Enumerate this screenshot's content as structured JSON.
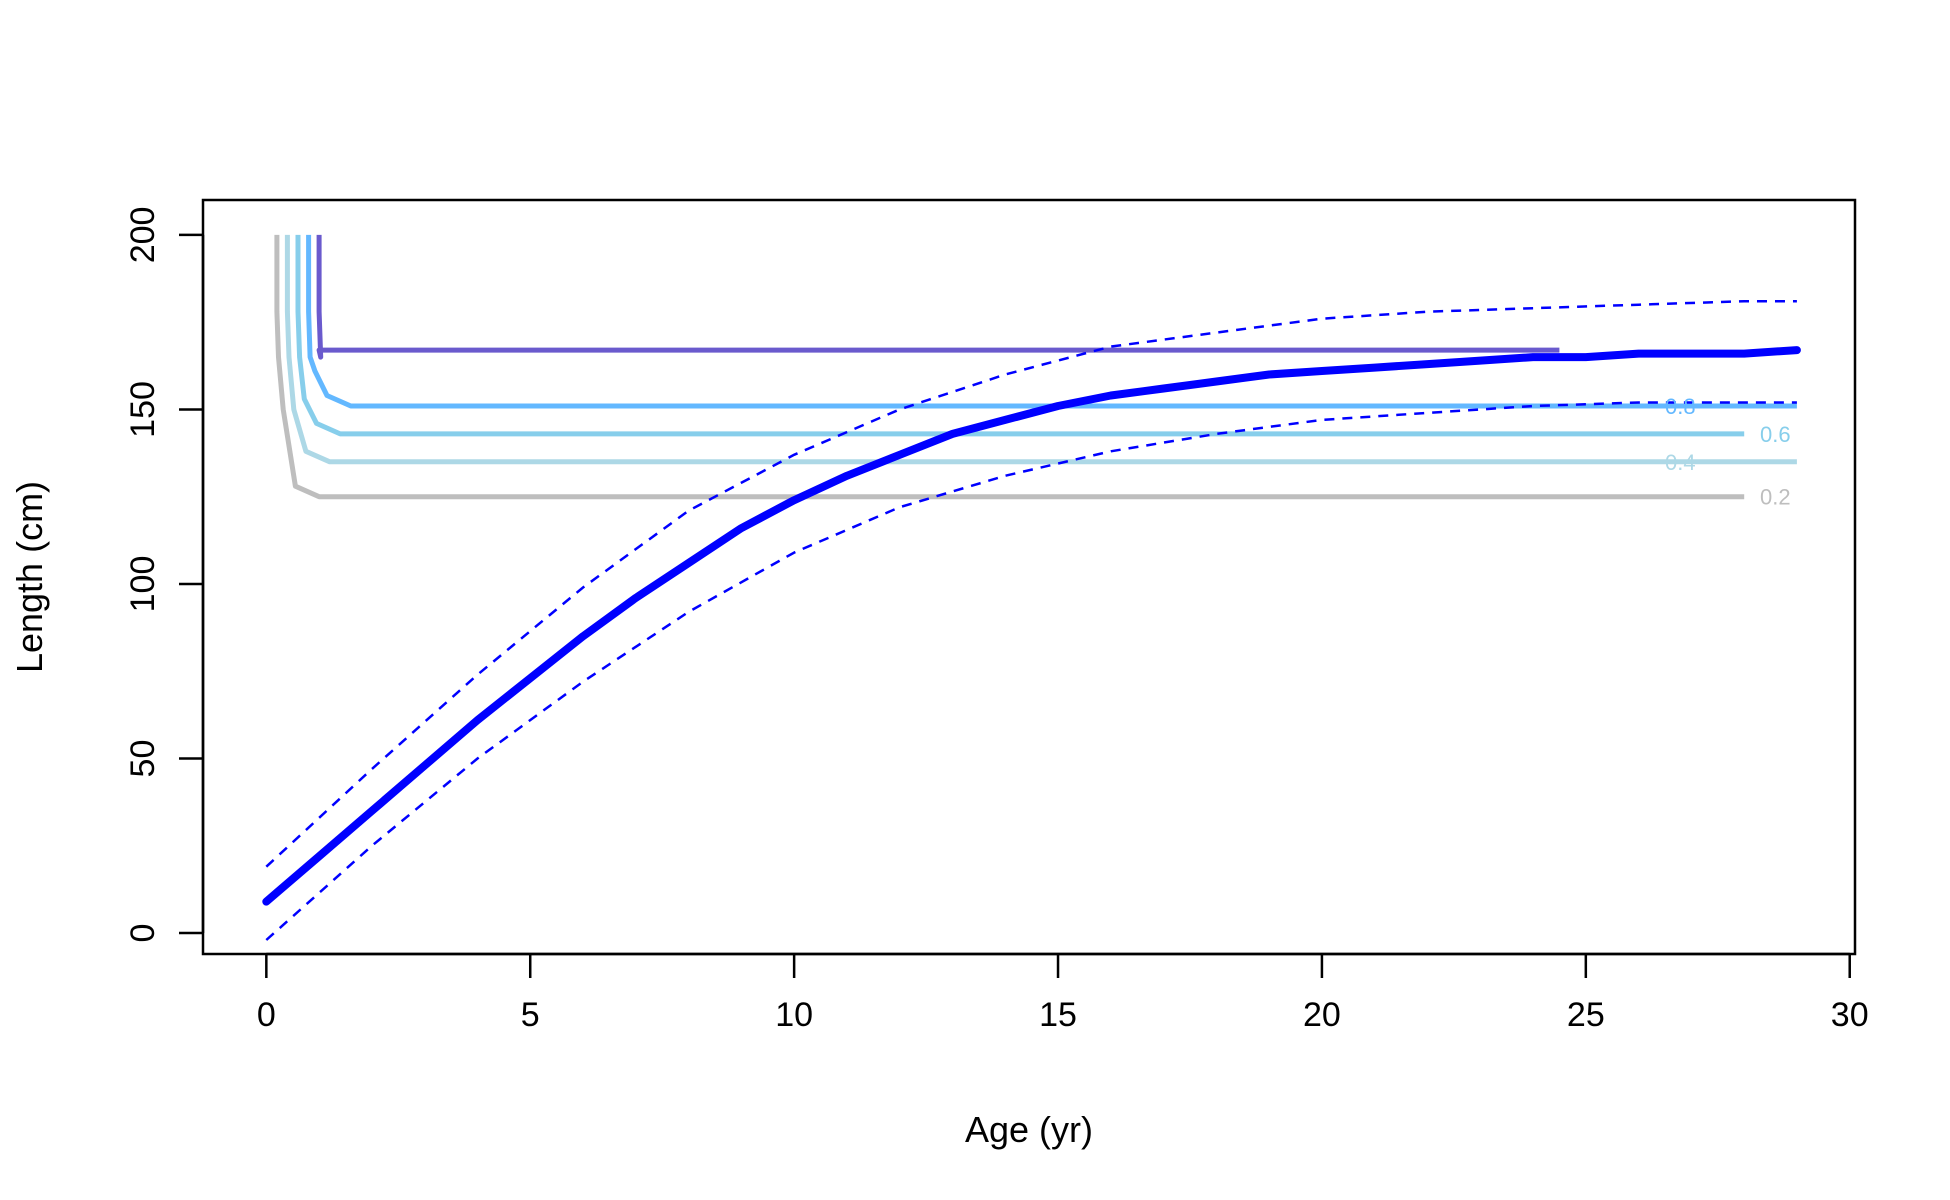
{
  "chart_data": {
    "type": "line",
    "xlabel": "Age (yr)",
    "ylabel": "Length (cm)",
    "xlim": [
      -1.2,
      30.1
    ],
    "ylim": [
      -6,
      210
    ],
    "x_ticks": [
      0,
      5,
      10,
      15,
      20,
      25,
      30
    ],
    "y_ticks": [
      0,
      50,
      100,
      150,
      200
    ],
    "grid": false,
    "growth_curve": {
      "color": "#0000ff",
      "mean": {
        "x": [
          0,
          1,
          2,
          3,
          4,
          5,
          6,
          7,
          8,
          9,
          10,
          11,
          12,
          13,
          14,
          15,
          16,
          17,
          18,
          19,
          20,
          21,
          22,
          23,
          24,
          25,
          26,
          27,
          28,
          29
        ],
        "y": [
          9,
          22,
          35,
          48,
          61,
          73,
          85,
          96,
          106,
          116,
          124,
          131,
          137,
          143,
          147,
          151,
          154,
          156,
          158,
          160,
          161,
          162,
          163,
          164,
          165,
          165,
          166,
          166,
          166,
          167
        ]
      },
      "upper_ci": {
        "x": [
          0,
          2,
          4,
          6,
          8,
          10,
          12,
          14,
          16,
          18,
          20,
          22,
          24,
          26,
          28,
          29
        ],
        "y": [
          19,
          47,
          74,
          99,
          121,
          137,
          150,
          160,
          168,
          172,
          176,
          178,
          179,
          180,
          181,
          181
        ]
      },
      "lower_ci": {
        "x": [
          0,
          2,
          4,
          6,
          8,
          10,
          12,
          14,
          16,
          18,
          20,
          22,
          24,
          26,
          28,
          29
        ],
        "y": [
          -2,
          25,
          50,
          72,
          92,
          109,
          122,
          131,
          138,
          143,
          147,
          149,
          151,
          152,
          152,
          152
        ]
      }
    },
    "contours": [
      {
        "level_label": "0.2",
        "color": "#bebebe",
        "x_start": 0.2,
        "x_end": 28.0,
        "y_level": 125,
        "label_x": 28.3
      },
      {
        "level_label": "0.4",
        "color": "#add8e6",
        "x_start": 0.4,
        "x_end": 29.0,
        "y_level": 135,
        "label_x": 26.5
      },
      {
        "level_label": "0.6",
        "color": "#87ceeb",
        "x_start": 0.6,
        "x_end": 28.0,
        "y_level": 143,
        "label_x": 28.3
      },
      {
        "level_label": "0.8",
        "color": "#63b8ff",
        "x_start": 0.8,
        "x_end": 29.0,
        "y_level": 151,
        "label_x": 26.5
      },
      {
        "level_label": "",
        "color": "#6a5acd",
        "x_start": 1.0,
        "x_end": 24.5,
        "y_level": 167,
        "label_x": 28.7
      }
    ]
  }
}
